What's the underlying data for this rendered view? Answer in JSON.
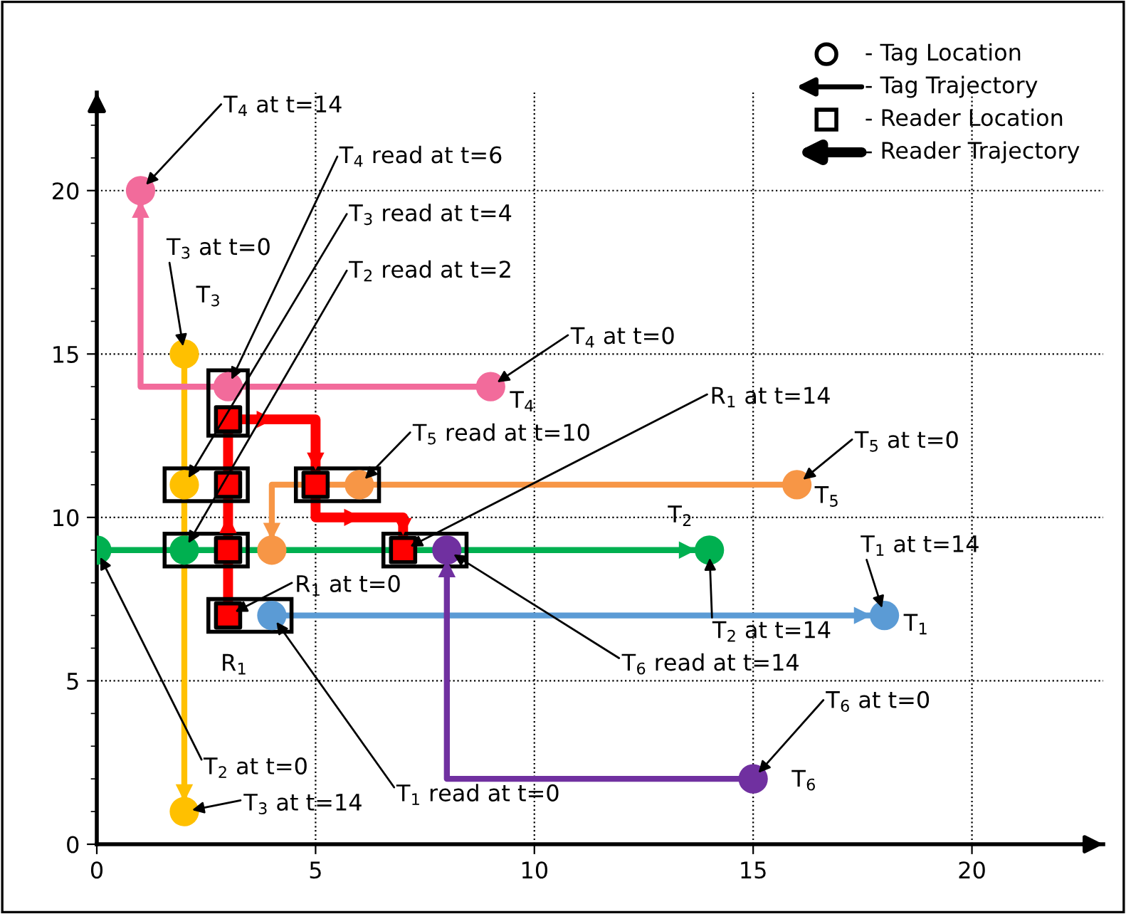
{
  "chart_data": {
    "type": "line",
    "xlim": [
      0,
      23
    ],
    "ylim": [
      0,
      23
    ],
    "xticks": [
      0,
      5,
      10,
      15,
      20
    ],
    "yticks": [
      0,
      5,
      10,
      15,
      20
    ],
    "grid": true,
    "series": [
      {
        "type": "line",
        "marker": "none",
        "color": "#5b9bd5",
        "x": [
          4,
          18
        ],
        "values": [
          7,
          7
        ]
      },
      {
        "type": "line",
        "marker": "none",
        "color": "#00b050",
        "x": [
          0,
          14
        ],
        "values": [
          9,
          9
        ]
      },
      {
        "type": "line",
        "marker": "none",
        "color": "#ffc000",
        "x": [
          2,
          2
        ],
        "values": [
          15,
          1
        ]
      },
      {
        "type": "line",
        "marker": "none",
        "color": "#f26b9b",
        "x": [
          9,
          1,
          1
        ],
        "values": [
          14,
          14,
          20
        ]
      },
      {
        "type": "line",
        "marker": "none",
        "color": "#f79646",
        "x": [
          16,
          4,
          4
        ],
        "values": [
          11,
          11,
          9
        ]
      },
      {
        "type": "line",
        "marker": "none",
        "color": "#7030a0",
        "x": [
          15,
          8,
          8
        ],
        "values": [
          2,
          2,
          9
        ]
      },
      {
        "type": "line",
        "marker": "none",
        "color": "#ff0000",
        "x": [
          3,
          3,
          5,
          5,
          7,
          7
        ],
        "values": [
          7,
          13,
          13,
          10,
          10,
          9
        ]
      },
      {
        "type": "scatter",
        "marker": "circle",
        "x": [
          4,
          18,
          0,
          2,
          14,
          2,
          2,
          2,
          9,
          3,
          1,
          16,
          6,
          4,
          15,
          8
        ],
        "values": [
          7,
          7,
          9,
          9,
          9,
          15,
          11,
          1,
          14,
          14,
          20,
          11,
          11,
          9,
          2,
          9
        ],
        "colors": [
          "#5b9bd5",
          "#5b9bd5",
          "#00b050",
          "#00b050",
          "#00b050",
          "#ffc000",
          "#ffc000",
          "#ffc000",
          "#f26b9b",
          "#f26b9b",
          "#f26b9b",
          "#f79646",
          "#f79646",
          "#f79646",
          "#7030a0",
          "#7030a0"
        ]
      },
      {
        "type": "scatter",
        "marker": "square",
        "color": "#ff0000",
        "x": [
          3,
          3,
          3,
          3,
          5,
          7
        ],
        "values": [
          7,
          9,
          11,
          13,
          11,
          9
        ]
      }
    ],
    "annotations": [
      "- Tag Location",
      "- Tag Trajectory",
      "- Reader Location",
      "- Reader Trajectory",
      {
        "text": "T$_{4}$ at t=14",
        "x": 1,
        "y": 20
      },
      {
        "text": "T$_{4}$ read at t=6",
        "x": 3,
        "y": 14
      },
      {
        "text": "T$_{3}$ read at t=4",
        "x": 2,
        "y": 11
      },
      {
        "text": "T$_{2}$ read at t=2",
        "x": 2,
        "y": 9
      },
      {
        "text": "T$_{3}$ at t=0",
        "x": 2,
        "y": 15
      },
      {
        "text": "T$_{4}$ at t=0",
        "x": 9,
        "y": 14
      },
      {
        "text": "T$_{4}$",
        "x": 9,
        "y": 14
      },
      {
        "text": "T$_{5}$ read at t=10",
        "x": 6,
        "y": 11
      },
      {
        "text": "R$_{1}$ at t=14",
        "x": 7,
        "y": 9
      },
      {
        "text": "T$_{5}$ at t=0",
        "x": 16,
        "y": 11
      },
      {
        "text": "T$_{5}$",
        "x": 16,
        "y": 11
      },
      {
        "text": "T$_{2}$",
        "x": 14,
        "y": 9
      },
      {
        "text": "T$_{1}$ at t=14",
        "x": 18,
        "y": 7
      },
      {
        "text": "T$_{1}$",
        "x": 18,
        "y": 7
      },
      {
        "text": "T$_{2}$ at t=14",
        "x": 14,
        "y": 9
      },
      {
        "text": "R$_{1}$ at t=0",
        "x": 3,
        "y": 7
      },
      {
        "text": "R$_{1}$",
        "x": 3,
        "y": 7
      },
      {
        "text": "T$_{6}$ read at t=14",
        "x": 8,
        "y": 9
      },
      {
        "text": "T$_{2}$ at t=0",
        "x": 0,
        "y": 9
      },
      {
        "text": "T$_{6}$ at t=0",
        "x": 15,
        "y": 2
      },
      {
        "text": "T$_{6}$",
        "x": 15,
        "y": 2
      },
      {
        "text": "T$_{1}$ read at t=0",
        "x": 4,
        "y": 7
      },
      {
        "text": "T$_{3}$ at t=14",
        "x": 2,
        "y": 1
      },
      {
        "text": "T$_{3}$",
        "x": 2,
        "y": 15
      }
    ]
  }
}
